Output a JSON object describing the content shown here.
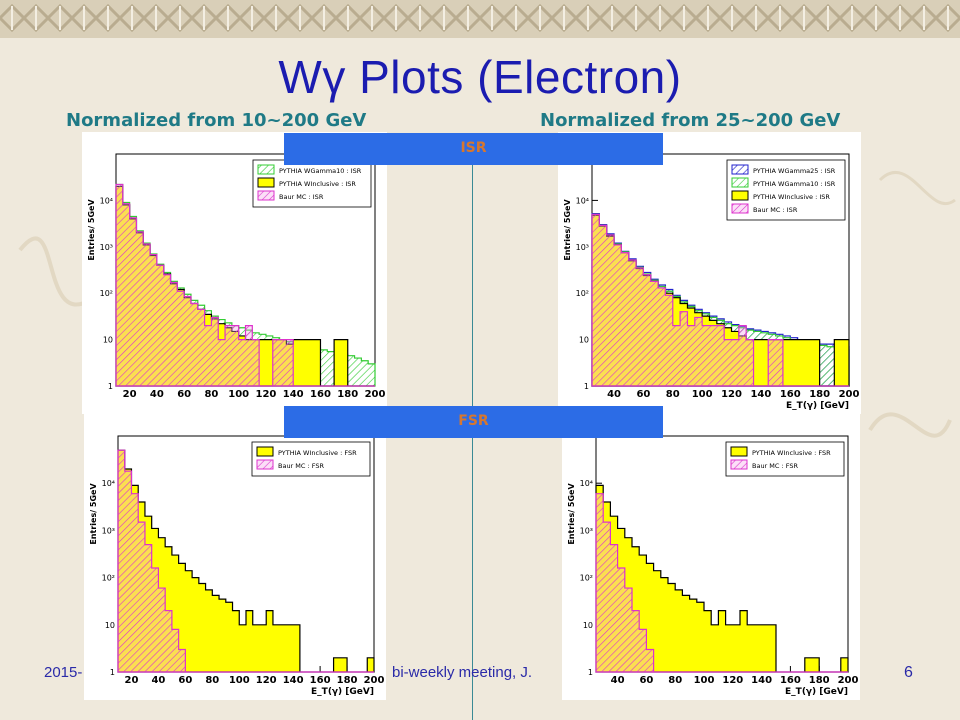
{
  "slide": {
    "title": "Wγ Plots (Electron)",
    "subtitle_left": "Normalized from 10~200 GeV",
    "subtitle_right": "Normalized from 25~200 GeV",
    "banner_isr": "ISR",
    "banner_fsr": "FSR",
    "footer_date": "2015-",
    "footer_text": "bi-weekly meeting, J.",
    "page_number": "6"
  },
  "colors": {
    "title": "#1b1cb0",
    "subtitle": "#1f7a86",
    "banner": "#2c6ce6",
    "banner_text": "#d6772f",
    "yellow": "#ffff00",
    "orange_hatch": "#e0a020",
    "magenta": "#dd33cc",
    "green": "#33cc33",
    "blue": "#2222cc"
  },
  "chart_data": [
    {
      "type": "bar",
      "id": "isr_10",
      "ylabel": "Entries/ 5GeV",
      "xlabel": "",
      "yscale": "log",
      "ylim": [
        1,
        100000
      ],
      "y_ticks": [
        "1",
        "10",
        "10²",
        "10³",
        "10⁴"
      ],
      "x_ticks": [
        "20",
        "40",
        "60",
        "80",
        "100",
        "120",
        "140",
        "160",
        "180",
        "200"
      ],
      "xlim": [
        10,
        200
      ],
      "legend": [
        "PYTHIA WGamma10 : ISR",
        "PYTHIA WInclusive : ISR",
        "Baur MC : ISR"
      ],
      "series": [
        {
          "name": "PYTHIA WGamma10 : ISR",
          "style": "green-hatch",
          "values": [
            22000,
            9000,
            4500,
            2200,
            1200,
            700,
            420,
            280,
            180,
            130,
            95,
            70,
            55,
            42,
            32,
            27,
            23,
            20,
            18,
            16,
            14,
            13,
            12,
            11,
            10,
            9,
            8.5,
            8,
            7,
            6.5,
            6,
            5.5,
            5,
            4.8,
            4.5,
            4,
            3.5,
            3
          ]
        },
        {
          "name": "PYTHIA WInclusive : ISR",
          "style": "yellow",
          "values": [
            20000,
            8000,
            4000,
            2000,
            1100,
            650,
            400,
            260,
            160,
            120,
            80,
            60,
            45,
            35,
            28,
            22,
            18,
            15,
            12,
            10,
            10,
            10,
            10,
            10,
            10,
            8,
            10,
            10,
            10,
            10,
            1,
            1,
            10,
            10,
            1,
            1,
            1,
            1
          ]
        },
        {
          "name": "Baur MC : ISR",
          "style": "magenta-hatch",
          "values": [
            22000,
            8500,
            4200,
            2100,
            1150,
            680,
            400,
            250,
            170,
            110,
            85,
            60,
            45,
            20,
            30,
            10,
            20,
            20,
            10,
            20,
            10,
            1,
            1,
            10,
            10,
            10,
            1,
            1,
            1,
            1,
            1,
            1,
            1,
            1,
            1,
            1,
            1,
            1
          ]
        }
      ]
    },
    {
      "type": "bar",
      "id": "isr_25",
      "ylabel": "Entries/ 5GeV",
      "xlabel": "E_T(γ) [GeV]",
      "yscale": "log",
      "ylim": [
        1,
        100000
      ],
      "y_ticks": [
        "1",
        "10",
        "10²",
        "10³",
        "10⁴"
      ],
      "x_ticks": [
        "40",
        "60",
        "80",
        "100",
        "120",
        "140",
        "160",
        "180",
        "200"
      ],
      "xlim": [
        25,
        200
      ],
      "legend": [
        "PYTHIA WGamma25 : ISR",
        "PYTHIA WGamma10 : ISR",
        "PYTHIA WInclusive : ISR",
        "Baur MC : ISR"
      ],
      "series": [
        {
          "name": "PYTHIA WGamma25 : ISR",
          "style": "blue-hatch",
          "values": [
            5200,
            3000,
            1900,
            1200,
            800,
            550,
            380,
            280,
            200,
            150,
            120,
            90,
            70,
            55,
            45,
            38,
            32,
            28,
            24,
            21,
            19,
            17,
            16,
            15,
            14,
            13,
            12,
            11,
            10,
            9,
            9,
            8,
            8,
            7,
            7
          ]
        },
        {
          "name": "PYTHIA WGamma10 : ISR",
          "style": "green-hatch",
          "values": [
            5000,
            2900,
            1800,
            1150,
            780,
            520,
            360,
            260,
            190,
            140,
            110,
            85,
            65,
            52,
            42,
            36,
            30,
            26,
            22,
            20,
            18,
            16,
            15,
            14,
            13,
            12,
            11,
            10,
            9,
            8.5,
            8,
            7.5,
            7,
            6.5,
            6
          ]
        },
        {
          "name": "PYTHIA WInclusive : ISR",
          "style": "yellow",
          "values": [
            4800,
            2800,
            1700,
            1100,
            750,
            500,
            340,
            240,
            180,
            130,
            100,
            80,
            60,
            48,
            38,
            32,
            26,
            22,
            18,
            15,
            12,
            10,
            10,
            10,
            10,
            10,
            10,
            10,
            10,
            10,
            10,
            1,
            1,
            10,
            10
          ]
        },
        {
          "name": "Baur MC : ISR",
          "style": "magenta-hatch",
          "values": [
            5000,
            2900,
            1800,
            1100,
            750,
            520,
            350,
            250,
            180,
            130,
            90,
            20,
            40,
            20,
            30,
            20,
            20,
            20,
            10,
            10,
            20,
            10,
            1,
            1,
            10,
            10,
            1,
            1,
            1,
            1,
            1,
            1,
            1,
            1,
            1
          ]
        }
      ]
    },
    {
      "type": "bar",
      "id": "fsr_10",
      "ylabel": "Entries/ 5GeV",
      "xlabel": "E_T(γ) [GeV]",
      "yscale": "log",
      "ylim": [
        1,
        100000
      ],
      "y_ticks": [
        "1",
        "10",
        "10²",
        "10³",
        "10⁴"
      ],
      "x_ticks": [
        "20",
        "40",
        "60",
        "80",
        "100",
        "120",
        "140",
        "160",
        "180",
        "200"
      ],
      "xlim": [
        10,
        200
      ],
      "legend": [
        "PYTHIA WInclusive : FSR",
        "Baur MC : FSR"
      ],
      "series": [
        {
          "name": "PYTHIA WInclusive : FSR",
          "style": "yellow",
          "values": [
            50000,
            20000,
            9000,
            4000,
            2000,
            1100,
            700,
            450,
            300,
            200,
            140,
            100,
            75,
            55,
            42,
            35,
            30,
            20,
            10,
            20,
            10,
            10,
            20,
            10,
            10,
            10,
            10,
            1,
            1,
            1,
            1,
            1,
            2,
            2,
            1,
            1,
            1,
            2
          ]
        },
        {
          "name": "Baur MC : FSR",
          "style": "magenta-hatch",
          "values": [
            50000,
            18000,
            6000,
            1500,
            500,
            160,
            60,
            20,
            8,
            3,
            1,
            1,
            1,
            1,
            1,
            1,
            1,
            1,
            1,
            1,
            1,
            1,
            1,
            1,
            1,
            1,
            1,
            1,
            1,
            1,
            1,
            1,
            1,
            1,
            1,
            1,
            1,
            1
          ]
        }
      ]
    },
    {
      "type": "bar",
      "id": "fsr_25",
      "ylabel": "Entries/ 5GeV",
      "xlabel": "E_T(γ) [GeV]",
      "yscale": "log",
      "ylim": [
        1,
        100000
      ],
      "y_ticks": [
        "1",
        "10",
        "10²",
        "10³",
        "10⁴"
      ],
      "x_ticks": [
        "40",
        "60",
        "80",
        "100",
        "120",
        "140",
        "160",
        "180",
        "200"
      ],
      "xlim": [
        25,
        200
      ],
      "legend": [
        "PYTHIA WInclusive : FSR",
        "Baur MC : FSR"
      ],
      "series": [
        {
          "name": "PYTHIA WInclusive : FSR",
          "style": "yellow",
          "values": [
            9000,
            4000,
            2000,
            1100,
            700,
            450,
            300,
            200,
            140,
            100,
            75,
            55,
            42,
            35,
            30,
            20,
            10,
            20,
            10,
            10,
            20,
            10,
            10,
            10,
            10,
            1,
            1,
            1,
            1,
            2,
            2,
            1,
            1,
            1,
            2
          ]
        },
        {
          "name": "Baur MC : FSR",
          "style": "magenta-hatch",
          "values": [
            6000,
            1500,
            500,
            160,
            60,
            20,
            8,
            3,
            1,
            1,
            1,
            1,
            1,
            1,
            1,
            1,
            1,
            1,
            1,
            1,
            1,
            1,
            1,
            1,
            1,
            1,
            1,
            1,
            1,
            1,
            1,
            1,
            1,
            1,
            1
          ]
        }
      ]
    }
  ]
}
